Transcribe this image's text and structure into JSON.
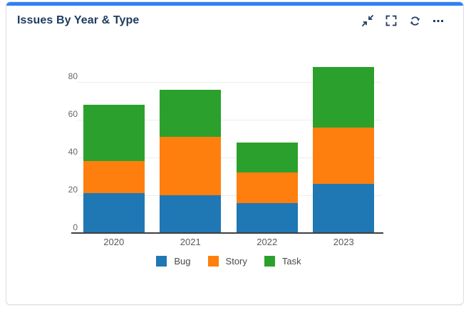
{
  "header": {
    "title": "Issues By Year & Type",
    "toolbar_icons": [
      {
        "name": "collapse-icon"
      },
      {
        "name": "fullscreen-icon"
      },
      {
        "name": "refresh-icon"
      },
      {
        "name": "more-options-icon"
      }
    ]
  },
  "colors": {
    "accent": "#2e80f6",
    "title_text": "#1d3b5e",
    "card_border": "#dcdce6",
    "axis_line": "#3f3f3f",
    "grid_line": "#ececec",
    "tick_text": "#666666",
    "legend_text": "#4a4a4a"
  },
  "chart_data": {
    "type": "bar",
    "stacked": true,
    "title": "Issues By Year & Type",
    "categories": [
      "2020",
      "2021",
      "2022",
      "2023"
    ],
    "series": [
      {
        "name": "Bug",
        "color": "#1f77b4",
        "values": [
          21,
          20,
          16,
          26
        ]
      },
      {
        "name": "Story",
        "color": "#ff7f0e",
        "values": [
          17,
          31,
          16,
          30
        ]
      },
      {
        "name": "Task",
        "color": "#2ca02c",
        "values": [
          30,
          25,
          16,
          32
        ]
      }
    ],
    "stack_totals": [
      68,
      76,
      48,
      88
    ],
    "yticks": [
      0,
      20,
      40,
      60,
      80
    ],
    "ylim": [
      0,
      88
    ],
    "xlabel": "",
    "ylabel": "",
    "grid": true,
    "legend_position": "bottom"
  }
}
